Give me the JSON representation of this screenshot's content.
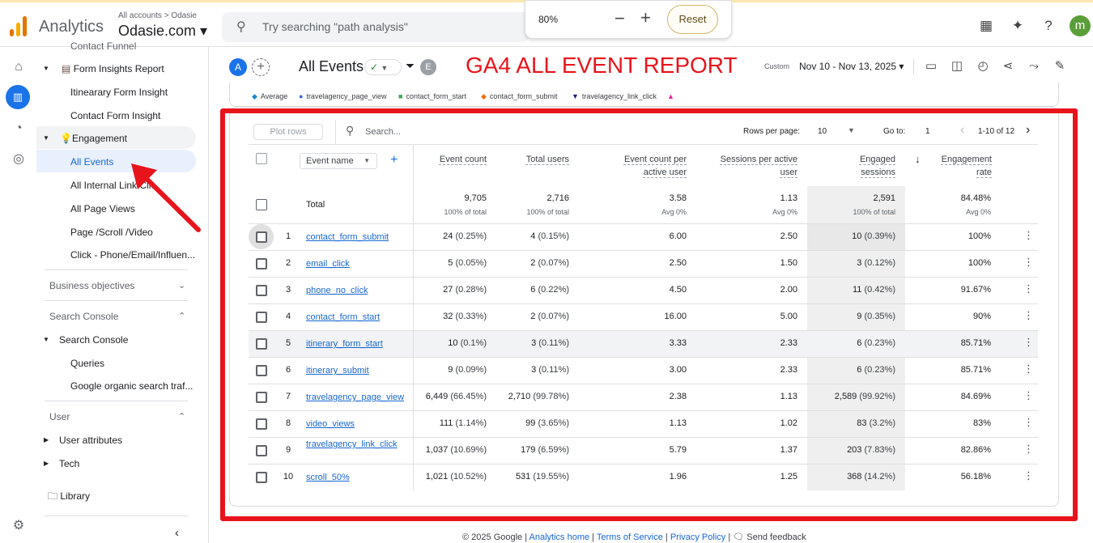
{
  "topbar": {
    "product": "Analytics",
    "crumbs": "All accounts > Odasie",
    "account": "Odasie.com ▾",
    "search_placeholder": "Try searching \"path analysis\"",
    "zoom": "80%",
    "zoom_minus": "−",
    "zoom_plus": "+",
    "reset": "Reset",
    "user_initial": "m"
  },
  "nav": {
    "items": [
      {
        "label": "Contact Funnel"
      },
      {
        "label": "Form Insights Report"
      },
      {
        "label": "Itinearary Form Insight"
      },
      {
        "label": "Contact Form Insight"
      },
      {
        "label": "Engagement"
      },
      {
        "label": "All Events"
      },
      {
        "label": "All Internal Link Clic"
      },
      {
        "label": "All Page Views"
      },
      {
        "label": "Page /Scroll /Video"
      },
      {
        "label": "Click - Phone/Email/Influen..."
      },
      {
        "label": "Business objectives"
      },
      {
        "label": "Search Console"
      },
      {
        "label": "Search Console"
      },
      {
        "label": "Queries"
      },
      {
        "label": "Google organic search traf..."
      },
      {
        "label": "User"
      },
      {
        "label": "User attributes"
      },
      {
        "label": "Tech"
      },
      {
        "label": "Library"
      }
    ]
  },
  "header": {
    "avatar_a": "A",
    "page_title": "All Events",
    "filter_badge": "E",
    "banner": "GA4 ALL EVENT REPORT",
    "custom": "Custom",
    "daterange": "Nov 10 - Nov 13, 2025 ▾"
  },
  "legend": [
    {
      "label": "Average",
      "color": "#1e88c8",
      "shape": "◆"
    },
    {
      "label": "travelagency_page_view",
      "color": "#3367d6",
      "shape": "●"
    },
    {
      "label": "contact_form_start",
      "color": "#34a853",
      "shape": "■"
    },
    {
      "label": "contact_form_submit",
      "color": "#e8710a",
      "shape": "◆"
    },
    {
      "label": "travelagency_link_click",
      "color": "#1a237e",
      "shape": "▼"
    },
    {
      "label": "",
      "color": "#e52592",
      "shape": "▲"
    }
  ],
  "toolbar": {
    "plot_rows": "Plot rows",
    "search": "Search...",
    "rows_per_page_label": "Rows per page:",
    "rows_per_page": "10",
    "goto_label": "Go to:",
    "goto": "1",
    "range": "1-10 of 12"
  },
  "table": {
    "dimension": "Event name",
    "columns": [
      "Event count",
      "Total users",
      "Event count per active user",
      "Sessions per active user",
      "Engaged sessions",
      "Engagement rate"
    ],
    "total_label": "Total",
    "totals": [
      {
        "value": "9,705",
        "sub": "100% of total"
      },
      {
        "value": "2,716",
        "sub": "100% of total"
      },
      {
        "value": "3.58",
        "sub": "Avg 0%"
      },
      {
        "value": "1.13",
        "sub": "Avg 0%"
      },
      {
        "value": "2,591",
        "sub": "100% of total"
      },
      {
        "value": "84.48%",
        "sub": "Avg 0%"
      }
    ],
    "rows": [
      {
        "idx": "1",
        "name": "contact_form_submit",
        "c1": "24",
        "p1": "(0.25%)",
        "c2": "4",
        "p2": "(0.15%)",
        "c3": "6.00",
        "c4": "2.50",
        "c5": "10",
        "p5": "(0.39%)",
        "c6": "100%"
      },
      {
        "idx": "2",
        "name": "email_click",
        "c1": "5",
        "p1": "(0.05%)",
        "c2": "2",
        "p2": "(0.07%)",
        "c3": "2.50",
        "c4": "1.50",
        "c5": "3",
        "p5": "(0.12%)",
        "c6": "100%"
      },
      {
        "idx": "3",
        "name": "phone_no_click",
        "c1": "27",
        "p1": "(0.28%)",
        "c2": "6",
        "p2": "(0.22%)",
        "c3": "4.50",
        "c4": "2.00",
        "c5": "11",
        "p5": "(0.42%)",
        "c6": "91.67%"
      },
      {
        "idx": "4",
        "name": "contact_form_start",
        "c1": "32",
        "p1": "(0.33%)",
        "c2": "2",
        "p2": "(0.07%)",
        "c3": "16.00",
        "c4": "5.00",
        "c5": "9",
        "p5": "(0.35%)",
        "c6": "90%"
      },
      {
        "idx": "5",
        "name": "itinerary_form_start",
        "c1": "10",
        "p1": "(0.1%)",
        "c2": "3",
        "p2": "(0.11%)",
        "c3": "3.33",
        "c4": "2.33",
        "c5": "6",
        "p5": "(0.23%)",
        "c6": "85.71%"
      },
      {
        "idx": "6",
        "name": "itinerary_submit",
        "c1": "9",
        "p1": "(0.09%)",
        "c2": "3",
        "p2": "(0.11%)",
        "c3": "3.00",
        "c4": "2.33",
        "c5": "6",
        "p5": "(0.23%)",
        "c6": "85.71%"
      },
      {
        "idx": "7",
        "name": "travelagency_page_view",
        "c1": "6,449",
        "p1": "(66.45%)",
        "c2": "2,710",
        "p2": "(99.78%)",
        "c3": "2.38",
        "c4": "1.13",
        "c5": "2,589",
        "p5": "(99.92%)",
        "c6": "84.69%"
      },
      {
        "idx": "8",
        "name": "video_views",
        "c1": "111",
        "p1": "(1.14%)",
        "c2": "99",
        "p2": "(3.65%)",
        "c3": "1.13",
        "c4": "1.02",
        "c5": "83",
        "p5": "(3.2%)",
        "c6": "83%"
      },
      {
        "idx": "9",
        "name": "travelagency_link_click",
        "c1": "1,037",
        "p1": "(10.69%)",
        "c2": "179",
        "p2": "(6.59%)",
        "c3": "5.79",
        "c4": "1.37",
        "c5": "203",
        "p5": "(7.83%)",
        "c6": "82.86%"
      },
      {
        "idx": "10",
        "name": "scroll_50%",
        "c1": "1,021",
        "p1": "(10.52%)",
        "c2": "531",
        "p2": "(19.55%)",
        "c3": "1.96",
        "c4": "1.25",
        "c5": "368",
        "p5": "(14.2%)",
        "c6": "56.18%"
      }
    ]
  },
  "footer": {
    "copyright": "© 2025 Google | ",
    "home": "Analytics home",
    "sep1": " | ",
    "terms": "Terms of Service",
    "sep2": " | ",
    "privacy": "Privacy Policy",
    "sep3": " | ",
    "feedback": "Send feedback"
  },
  "colors": {
    "accent": "#1a73e8",
    "annotation_red": "#e8141c"
  }
}
